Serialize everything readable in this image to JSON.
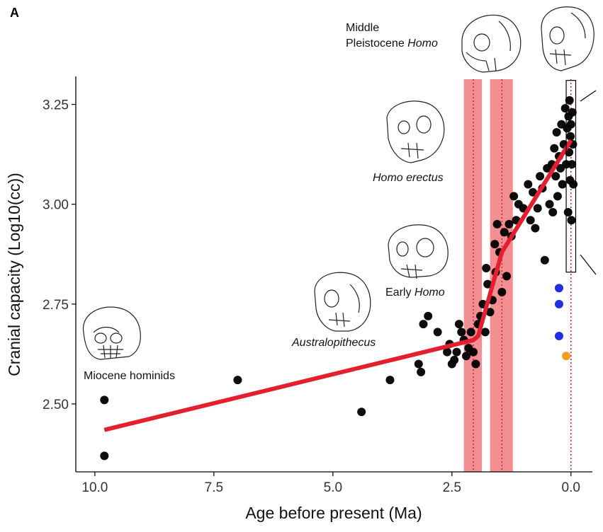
{
  "panel_label": "A",
  "chart_data": {
    "type": "scatter",
    "xlabel": "Age before present (Ma)",
    "ylabel": "Cranial capacity (Log10(cc))",
    "xlim": [
      10.4,
      -0.45
    ],
    "ylim": [
      2.33,
      3.32
    ],
    "x_reversed": true,
    "x_ticks": [
      10.0,
      7.5,
      5.0,
      2.5,
      0.0
    ],
    "x_tick_labels": [
      "10.0",
      "7.5",
      "5.0",
      "2.5",
      "0.0"
    ],
    "y_ticks": [
      2.5,
      2.75,
      3.0,
      3.25
    ],
    "y_tick_labels": [
      "2.50",
      "2.75",
      "3.00",
      "3.25"
    ],
    "grid": false,
    "colors": {
      "points": "#000000",
      "trend": "#e3202f",
      "bands": "#f07b80",
      "band_lines": "#e3202f",
      "blue_points": "#1f2fe0",
      "orange_points": "#f29d1e"
    },
    "bands": [
      {
        "from": 2.25,
        "to": 1.87
      },
      {
        "from": 1.7,
        "to": 1.22
      }
    ],
    "dotted_lines": [
      2.05,
      1.45,
      0.0
    ],
    "trend_line": {
      "x": [
        9.8,
        2.05,
        1.95,
        1.45,
        0.0
      ],
      "y": [
        2.435,
        2.66,
        2.67,
        2.88,
        3.16
      ]
    },
    "inset_box": {
      "x": [
        0.1,
        -0.1
      ],
      "y": [
        2.83,
        3.31
      ]
    },
    "series": [
      {
        "name": "fossil hominins",
        "color": "#000000",
        "points": [
          [
            9.8,
            2.51
          ],
          [
            9.8,
            2.37
          ],
          [
            7.0,
            2.56
          ],
          [
            4.4,
            2.48
          ],
          [
            3.8,
            2.56
          ],
          [
            3.2,
            2.6
          ],
          [
            3.15,
            2.58
          ],
          [
            3.1,
            2.7
          ],
          [
            3.0,
            2.72
          ],
          [
            2.8,
            2.68
          ],
          [
            2.6,
            2.63
          ],
          [
            2.55,
            2.65
          ],
          [
            2.5,
            2.6
          ],
          [
            2.45,
            2.61
          ],
          [
            2.4,
            2.63
          ],
          [
            2.35,
            2.7
          ],
          [
            2.3,
            2.68
          ],
          [
            2.25,
            2.66
          ],
          [
            2.2,
            2.62
          ],
          [
            2.15,
            2.64
          ],
          [
            2.1,
            2.68
          ],
          [
            2.05,
            2.63
          ],
          [
            2.0,
            2.6
          ],
          [
            1.95,
            2.7
          ],
          [
            1.9,
            2.72
          ],
          [
            1.85,
            2.75
          ],
          [
            1.8,
            2.68
          ],
          [
            1.78,
            2.84
          ],
          [
            1.75,
            2.8
          ],
          [
            1.7,
            2.73
          ],
          [
            1.65,
            2.76
          ],
          [
            1.6,
            2.9
          ],
          [
            1.58,
            2.83
          ],
          [
            1.55,
            2.95
          ],
          [
            1.5,
            2.88
          ],
          [
            1.45,
            2.78
          ],
          [
            1.4,
            2.93
          ],
          [
            1.35,
            2.82
          ],
          [
            1.3,
            2.95
          ],
          [
            1.25,
            2.92
          ],
          [
            1.2,
            3.02
          ],
          [
            1.15,
            2.96
          ],
          [
            1.1,
            3.0
          ],
          [
            1.0,
            2.99
          ],
          [
            0.9,
            3.05
          ],
          [
            0.85,
            2.96
          ],
          [
            0.8,
            3.03
          ],
          [
            0.75,
            2.94
          ],
          [
            0.7,
            2.99
          ],
          [
            0.65,
            3.07
          ],
          [
            0.6,
            3.04
          ],
          [
            0.55,
            2.86
          ],
          [
            0.5,
            3.09
          ],
          [
            0.45,
            3.0
          ],
          [
            0.4,
            3.1
          ],
          [
            0.38,
            2.98
          ],
          [
            0.35,
            3.14
          ],
          [
            0.32,
            3.07
          ],
          [
            0.3,
            3.18
          ],
          [
            0.28,
            3.02
          ],
          [
            0.25,
            3.12
          ],
          [
            0.22,
            3.09
          ],
          [
            0.2,
            3.2
          ],
          [
            0.18,
            3.05
          ],
          [
            0.15,
            3.15
          ],
          [
            0.12,
            3.24
          ],
          [
            0.1,
            3.1
          ],
          [
            0.08,
            3.19
          ],
          [
            0.06,
            2.98
          ],
          [
            0.05,
            3.22
          ],
          [
            0.04,
            3.13
          ],
          [
            0.03,
            3.26
          ],
          [
            0.02,
            3.06
          ],
          [
            0.01,
            3.17
          ],
          [
            0.0,
            3.2
          ],
          [
            -0.01,
            2.96
          ],
          [
            -0.02,
            3.1
          ],
          [
            -0.03,
            3.23
          ],
          [
            -0.04,
            3.15
          ],
          [
            -0.05,
            3.05
          ]
        ]
      },
      {
        "name": "blue group",
        "color": "#1f2fe0",
        "points": [
          [
            0.25,
            2.79
          ],
          [
            0.25,
            2.75
          ],
          [
            0.25,
            2.67
          ]
        ]
      },
      {
        "name": "orange point",
        "color": "#f29d1e",
        "points": [
          [
            0.1,
            2.62
          ]
        ]
      }
    ],
    "annotations": [
      {
        "id": "miocene",
        "text": "Miocene hominids",
        "italic": false
      },
      {
        "id": "australopithecus",
        "text": "Australopithecus",
        "italic": true
      },
      {
        "id": "early-homo-a",
        "text": "Early ",
        "italic": false
      },
      {
        "id": "early-homo-b",
        "text": "Homo",
        "italic": true
      },
      {
        "id": "homo-erectus",
        "text": "Homo erectus",
        "italic": true
      },
      {
        "id": "middle-1",
        "text": "Middle",
        "italic": false
      },
      {
        "id": "middle-2a",
        "text": "Pleistocene ",
        "italic": false
      },
      {
        "id": "middle-2b",
        "text": "Homo",
        "italic": true
      }
    ]
  }
}
